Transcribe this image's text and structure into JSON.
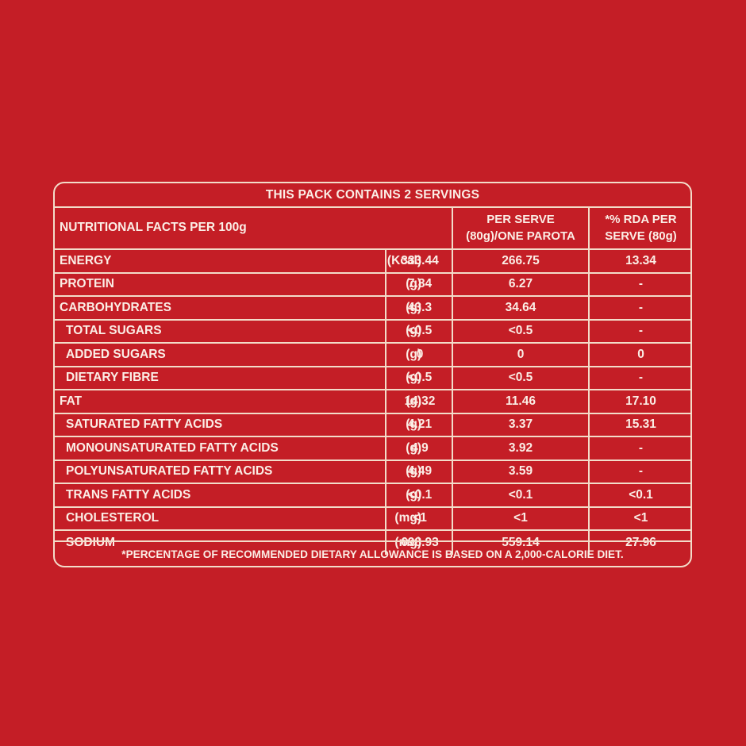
{
  "header": "THIS PACK CONTAINS 2 SERVINGS",
  "columns": {
    "nutrient": "NUTRITIONAL FACTS PER 100g",
    "per_serve_line1": "PER SERVE",
    "per_serve_line2": "(80g)/ONE PAROTA",
    "rda_line1": "*% RDA PER",
    "rda_line2": "SERVE (80g)"
  },
  "rows": [
    {
      "name": "ENERGY",
      "unit": "(Kcal)",
      "per100g": "333.44",
      "per_serve": "266.75",
      "rda": "13.34"
    },
    {
      "name": "PROTEIN",
      "unit": "(g)",
      "per100g": "7.84",
      "per_serve": "6.27",
      "rda": "-"
    },
    {
      "name": "CARBOHYDRATES",
      "unit": "(g)",
      "per100g": "43.3",
      "per_serve": "34.64",
      "rda": "-"
    },
    {
      "name": "TOTAL SUGARS",
      "unit": "(g)",
      "per100g": "<0.5",
      "per_serve": "<0.5",
      "rda": "-"
    },
    {
      "name": "ADDED SUGARS",
      "unit": "(g)",
      "per100g": "0",
      "per_serve": "0",
      "rda": "0"
    },
    {
      "name": "DIETARY FIBRE",
      "unit": "(g)",
      "per100g": "<0.5",
      "per_serve": "<0.5",
      "rda": "-"
    },
    {
      "name": "FAT",
      "unit": "(g)",
      "per100g": "14.32",
      "per_serve": "11.46",
      "rda": "17.10"
    },
    {
      "name": "SATURATED FATTY ACIDS",
      "unit": "(g)",
      "per100g": "4.21",
      "per_serve": "3.37",
      "rda": "15.31"
    },
    {
      "name": "MONOUNSATURATED FATTY ACIDS",
      "unit": "(g)",
      "per100g": "4.9",
      "per_serve": "3.92",
      "rda": "-"
    },
    {
      "name": "POLYUNSATURATED FATTY ACIDS",
      "unit": "(g)",
      "per100g": "4.49",
      "per_serve": "3.59",
      "rda": "-"
    },
    {
      "name": "TRANS FATTY ACIDS",
      "unit": "(g)",
      "per100g": "<0.1",
      "per_serve": "<0.1",
      "rda": "<0.1"
    },
    {
      "name": "CHOLESTEROL",
      "unit": "(mg)",
      "per100g": "<1",
      "per_serve": "<1",
      "rda": "<1"
    },
    {
      "name": "SODIUM",
      "unit": "(mg)",
      "per100g": "698.93",
      "per_serve": "559.14",
      "rda": "27.96"
    }
  ],
  "footnote": "*PERCENTAGE OF RECOMMENDED DIETARY ALLOWANCE IS BASED ON A 2,000-CALORIE DIET.",
  "colors": {
    "background": "#c41e26",
    "text": "#fbeee6",
    "border": "#f3dcc9"
  }
}
